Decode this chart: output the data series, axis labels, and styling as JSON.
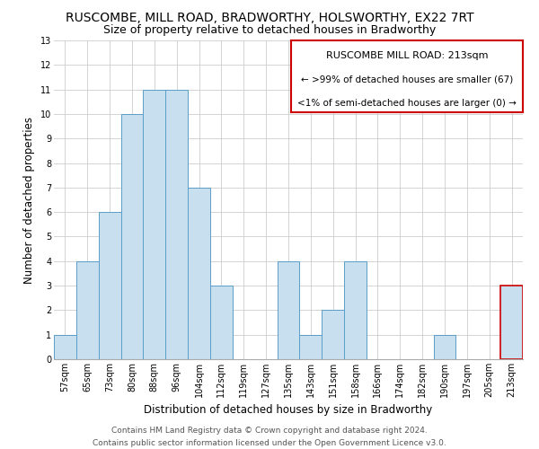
{
  "title": "RUSCOMBE, MILL ROAD, BRADWORTHY, HOLSWORTHY, EX22 7RT",
  "subtitle": "Size of property relative to detached houses in Bradworthy",
  "xlabel": "Distribution of detached houses by size in Bradworthy",
  "ylabel": "Number of detached properties",
  "bar_labels": [
    "57sqm",
    "65sqm",
    "73sqm",
    "80sqm",
    "88sqm",
    "96sqm",
    "104sqm",
    "112sqm",
    "119sqm",
    "127sqm",
    "135sqm",
    "143sqm",
    "151sqm",
    "158sqm",
    "166sqm",
    "174sqm",
    "182sqm",
    "190sqm",
    "197sqm",
    "205sqm",
    "213sqm"
  ],
  "bar_values": [
    1,
    4,
    6,
    10,
    11,
    11,
    7,
    3,
    0,
    0,
    4,
    1,
    2,
    4,
    0,
    0,
    0,
    1,
    0,
    0,
    3
  ],
  "bar_color": "#c8dff0",
  "bar_edge_color": "#5b9ec9",
  "highlight_index": 20,
  "highlight_bar_edge_color": "#cc0000",
  "ylim": [
    0,
    13
  ],
  "yticks": [
    0,
    1,
    2,
    3,
    4,
    5,
    6,
    7,
    8,
    9,
    10,
    11,
    12,
    13
  ],
  "legend_title": "RUSCOMBE MILL ROAD: 213sqm",
  "legend_line1": "← >99% of detached houses are smaller (67)",
  "legend_line2": "<1% of semi-detached houses are larger (0) →",
  "legend_box_edge_color": "#cc0000",
  "footer_line1": "Contains HM Land Registry data © Crown copyright and database right 2024.",
  "footer_line2": "Contains public sector information licensed under the Open Government Licence v3.0.",
  "grid_color": "#cccccc",
  "bg_color": "#ffffff",
  "title_fontsize": 10,
  "subtitle_fontsize": 9,
  "axis_label_fontsize": 8.5,
  "tick_fontsize": 7,
  "footer_fontsize": 6.5,
  "legend_title_fontsize": 8,
  "legend_text_fontsize": 7.5
}
